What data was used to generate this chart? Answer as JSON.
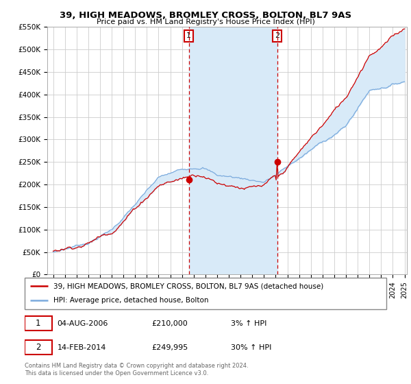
{
  "title": "39, HIGH MEADOWS, BROMLEY CROSS, BOLTON, BL7 9AS",
  "subtitle": "Price paid vs. HM Land Registry's House Price Index (HPI)",
  "ylabel_ticks": [
    "£0",
    "£50K",
    "£100K",
    "£150K",
    "£200K",
    "£250K",
    "£300K",
    "£350K",
    "£400K",
    "£450K",
    "£500K",
    "£550K"
  ],
  "ylim": [
    0,
    550000
  ],
  "xlim_start": 1994.5,
  "xlim_end": 2025.2,
  "line1_color": "#cc0000",
  "line2_color": "#7aaadd",
  "fill_color": "#d8eaf8",
  "point1_x": 2006.58,
  "point1_y": 210000,
  "point2_x": 2014.12,
  "point2_y": 249995,
  "legend_line1": "39, HIGH MEADOWS, BROMLEY CROSS, BOLTON, BL7 9AS (detached house)",
  "legend_line2": "HPI: Average price, detached house, Bolton",
  "table_row1": [
    "1",
    "04-AUG-2006",
    "£210,000",
    "3% ↑ HPI"
  ],
  "table_row2": [
    "2",
    "14-FEB-2014",
    "£249,995",
    "30% ↑ HPI"
  ],
  "footnote": "Contains HM Land Registry data © Crown copyright and database right 2024.\nThis data is licensed under the Open Government Licence v3.0.",
  "background_color": "#ffffff",
  "plot_bg_color": "#ffffff",
  "grid_color": "#cccccc"
}
